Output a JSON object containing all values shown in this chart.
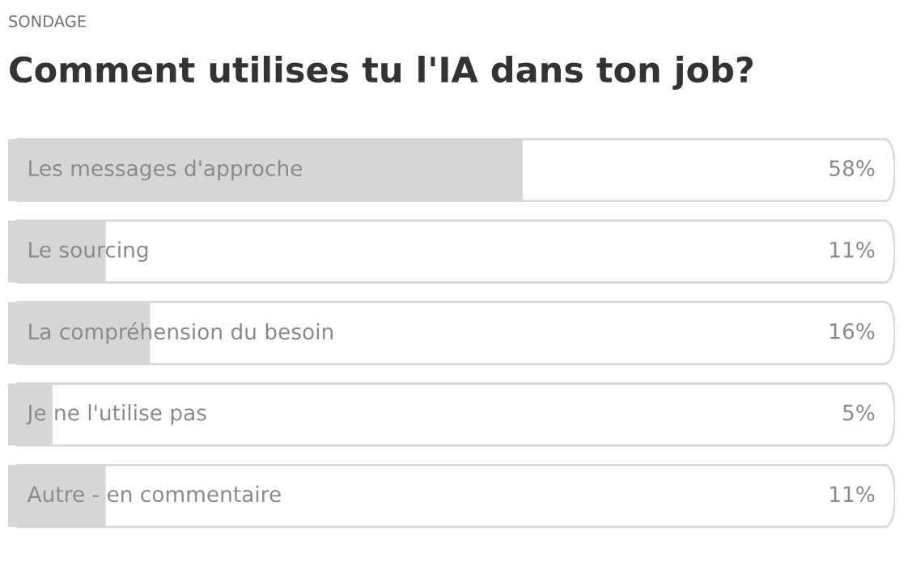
{
  "chart_data": {
    "type": "bar",
    "orientation": "horizontal",
    "subtitle": "SONDAGE",
    "title": "Comment utilises tu l'IA dans ton job?",
    "categories": [
      "Les messages d'approche",
      "Le sourcing",
      "La compréhension du besoin",
      "Je ne l'utilise pas",
      "Autre - en commentaire"
    ],
    "values": [
      58,
      11,
      16,
      5,
      11
    ],
    "value_labels": [
      "58%",
      "11%",
      "16%",
      "5%",
      "11%"
    ],
    "color": "#d6d6d6",
    "xlim": [
      0,
      100
    ],
    "tick_labels": false
  }
}
